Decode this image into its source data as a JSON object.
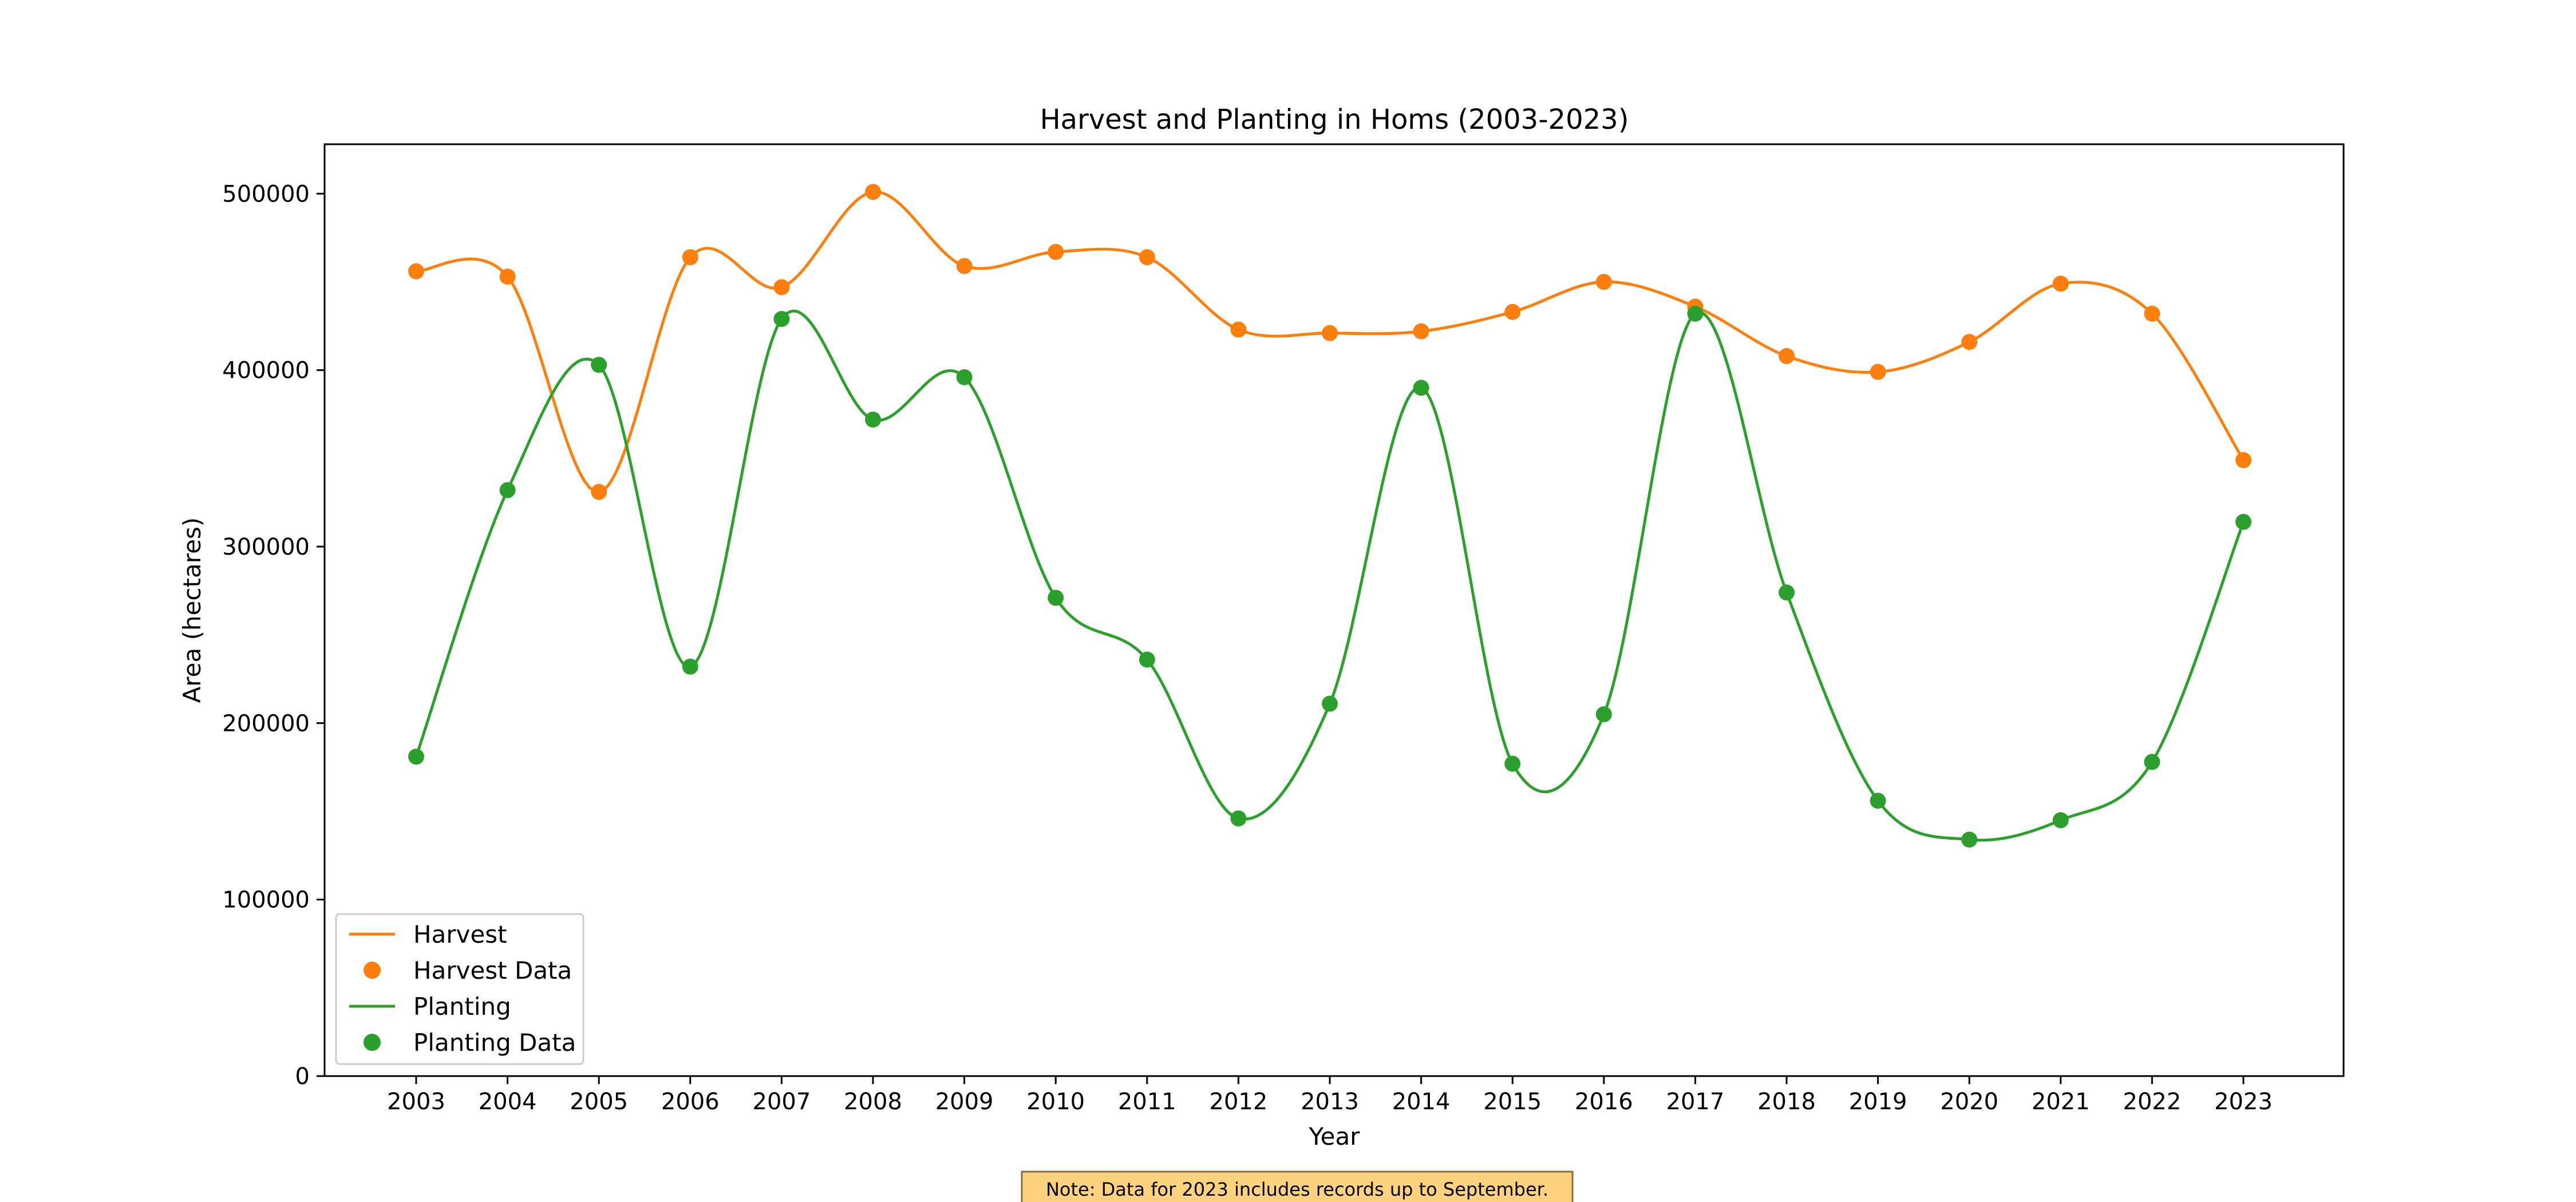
{
  "chart_data": {
    "type": "line",
    "title": "Harvest and Planting in Homs (2003-2023)",
    "xlabel": "Year",
    "ylabel": "Area (hectares)",
    "x": [
      "2003",
      "2004",
      "2005",
      "2006",
      "2007",
      "2008",
      "2009",
      "2010",
      "2011",
      "2012",
      "2013",
      "2014",
      "2015",
      "2016",
      "2017",
      "2018",
      "2019",
      "2020",
      "2021",
      "2022",
      "2023"
    ],
    "ylim": [
      0,
      528000
    ],
    "yticks": [
      0,
      100000,
      200000,
      300000,
      400000,
      500000
    ],
    "ytick_labels": [
      "0",
      "100000",
      "200000",
      "300000",
      "400000",
      "500000"
    ],
    "grid": false,
    "legend_position": "lower-left",
    "legend": [
      "Harvest",
      "Harvest Data",
      "Planting",
      "Planting Data"
    ],
    "series": [
      {
        "name": "Harvest",
        "marker_label": "Harvest Data",
        "color": "#ff7f0e",
        "values": [
          456000,
          453000,
          331000,
          464000,
          447000,
          501000,
          459000,
          467000,
          464000,
          423000,
          421000,
          422000,
          433000,
          450000,
          436000,
          408000,
          399000,
          416000,
          449000,
          432000,
          349000
        ]
      },
      {
        "name": "Planting",
        "marker_label": "Planting Data",
        "color": "#2ca02c",
        "values": [
          181000,
          332000,
          403000,
          232000,
          429000,
          372000,
          396000,
          271000,
          236000,
          146000,
          211000,
          390000,
          177000,
          205000,
          432000,
          274000,
          156000,
          134000,
          145000,
          178000,
          314000
        ]
      }
    ],
    "annotation": "Note: Data for 2023 includes records up to September."
  }
}
